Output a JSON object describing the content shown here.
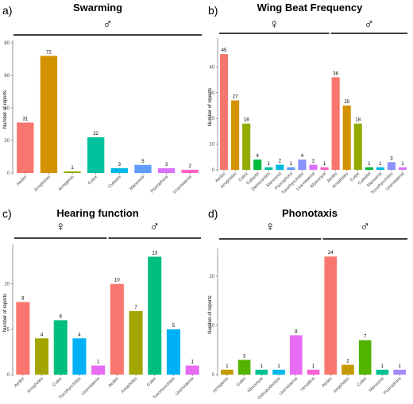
{
  "chart_data": [
    {
      "type": "bar",
      "panel_label": "a)",
      "title": "Swarming",
      "ylabel": "Number of reports",
      "ylim": [
        0,
        80
      ],
      "yticks": [
        0,
        20,
        40,
        60,
        80
      ],
      "groups": [
        {
          "symbol": "♂",
          "categories": [
            "Aedes",
            "Anopheles",
            "Armigeres",
            "Culex",
            "Culiseta",
            "Mansonia",
            "Psorophora",
            "Uranotaenia"
          ],
          "values": [
            31,
            72,
            1,
            22,
            3,
            5,
            3,
            2
          ],
          "colors": [
            "#f8766d",
            "#d39200",
            "#93aa00",
            "#00c19f",
            "#00b9e3",
            "#619cff",
            "#db72fb",
            "#ff61c3"
          ]
        }
      ]
    },
    {
      "type": "bar",
      "panel_label": "b)",
      "title": "Wing Beat Frequency",
      "ylabel": "Number of reports",
      "ylim": [
        0,
        50
      ],
      "yticks": [
        0,
        10,
        20,
        30,
        40
      ],
      "groups": [
        {
          "symbol": "♀",
          "categories": [
            "Aedes",
            "Anopheles",
            "Culex",
            "Culiseta",
            "Deinocerites",
            "Mansonia",
            "Psorophora",
            "Toxorhynchites",
            "Uranotaenia",
            "Wyeomyia"
          ],
          "values": [
            45,
            27,
            18,
            4,
            1,
            2,
            1,
            4,
            2,
            1
          ],
          "colors": [
            "#f8766d",
            "#d39200",
            "#93aa00",
            "#00ba38",
            "#00c19f",
            "#00b9e3",
            "#619cff",
            "#8b93ff",
            "#db72fb",
            "#ff61c3"
          ]
        },
        {
          "symbol": "♂",
          "categories": [
            "Aedes",
            "Anopheles",
            "Culex",
            "Culiseta",
            "Mansonia",
            "Toxorhynchites",
            "Uranotaenia"
          ],
          "values": [
            36,
            25,
            18,
            1,
            1,
            3,
            1
          ],
          "colors": [
            "#f8766d",
            "#d39200",
            "#93aa00",
            "#00ba38",
            "#00b9e3",
            "#8b93ff",
            "#db72fb"
          ]
        }
      ]
    },
    {
      "type": "bar",
      "panel_label": "c)",
      "title": "Hearing function",
      "ylabel": "Number of reports",
      "ylim": [
        0,
        14
      ],
      "yticks": [
        0,
        5,
        10
      ],
      "groups": [
        {
          "symbol": "♀",
          "categories": [
            "Aedes",
            "Anopheles",
            "Culex",
            "Toxorhynchites",
            "Uranotaenia"
          ],
          "values": [
            8,
            4,
            6,
            4,
            1
          ],
          "colors": [
            "#f8766d",
            "#a3a500",
            "#00bf7d",
            "#00b0f6",
            "#e76bf3"
          ]
        },
        {
          "symbol": "♂",
          "categories": [
            "Aedes",
            "Anopheles",
            "Culex",
            "Toxorhynchites",
            "Uranotaenia"
          ],
          "values": [
            10,
            7,
            13,
            5,
            1
          ],
          "colors": [
            "#f8766d",
            "#a3a500",
            "#00bf7d",
            "#00b0f6",
            "#e76bf3"
          ]
        }
      ]
    },
    {
      "type": "bar",
      "panel_label": "d)",
      "title": "Phonotaxis",
      "ylabel": "Number of reports",
      "ylim": [
        0,
        25
      ],
      "yticks": [
        0,
        10,
        20
      ],
      "groups": [
        {
          "symbol": "♀",
          "categories": [
            "Armigeres",
            "Culex",
            "Mimomyia",
            "Orthopodomyia",
            "Uranotaenia",
            "Verrallina"
          ],
          "values": [
            1,
            3,
            1,
            1,
            8,
            1
          ],
          "colors": [
            "#c49a00",
            "#53b400",
            "#00c094",
            "#00b6eb",
            "#e76bf3",
            "#fb61d7"
          ]
        },
        {
          "symbol": "♂",
          "categories": [
            "Aedes",
            "Anopheles",
            "Culex",
            "Mansonia",
            "Psorophora"
          ],
          "values": [
            24,
            2,
            7,
            1,
            1
          ],
          "colors": [
            "#f8766d",
            "#c49a00",
            "#53b400",
            "#00c094",
            "#a58aff"
          ]
        }
      ]
    }
  ]
}
